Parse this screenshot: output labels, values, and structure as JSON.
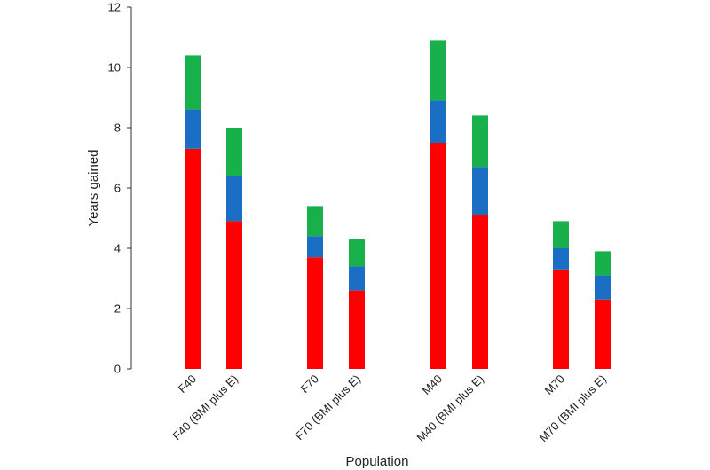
{
  "chart_data": {
    "type": "bar",
    "stacked": true,
    "title": "",
    "xlabel": "Population",
    "ylabel": "Years gained",
    "ylim": [
      0,
      12
    ],
    "yticks": [
      0,
      2,
      4,
      6,
      8,
      10,
      12
    ],
    "grid": false,
    "categories": [
      "F40",
      "F40 (BMI plus E)",
      "F70",
      "F70 (BMI plus E)",
      "M40",
      "M40 (BMI plus E)",
      "M70",
      "M70 (BMI plus E)"
    ],
    "series": [
      {
        "color": "#ff0000",
        "values": [
          7.3,
          4.9,
          3.7,
          2.6,
          7.5,
          5.1,
          3.3,
          2.3
        ]
      },
      {
        "color": "#1a6fc4",
        "values": [
          1.3,
          1.5,
          0.7,
          0.8,
          1.4,
          1.6,
          0.7,
          0.8
        ]
      },
      {
        "color": "#18b04a",
        "values": [
          1.8,
          1.6,
          1.0,
          0.9,
          2.0,
          1.7,
          0.9,
          0.8
        ]
      }
    ]
  }
}
